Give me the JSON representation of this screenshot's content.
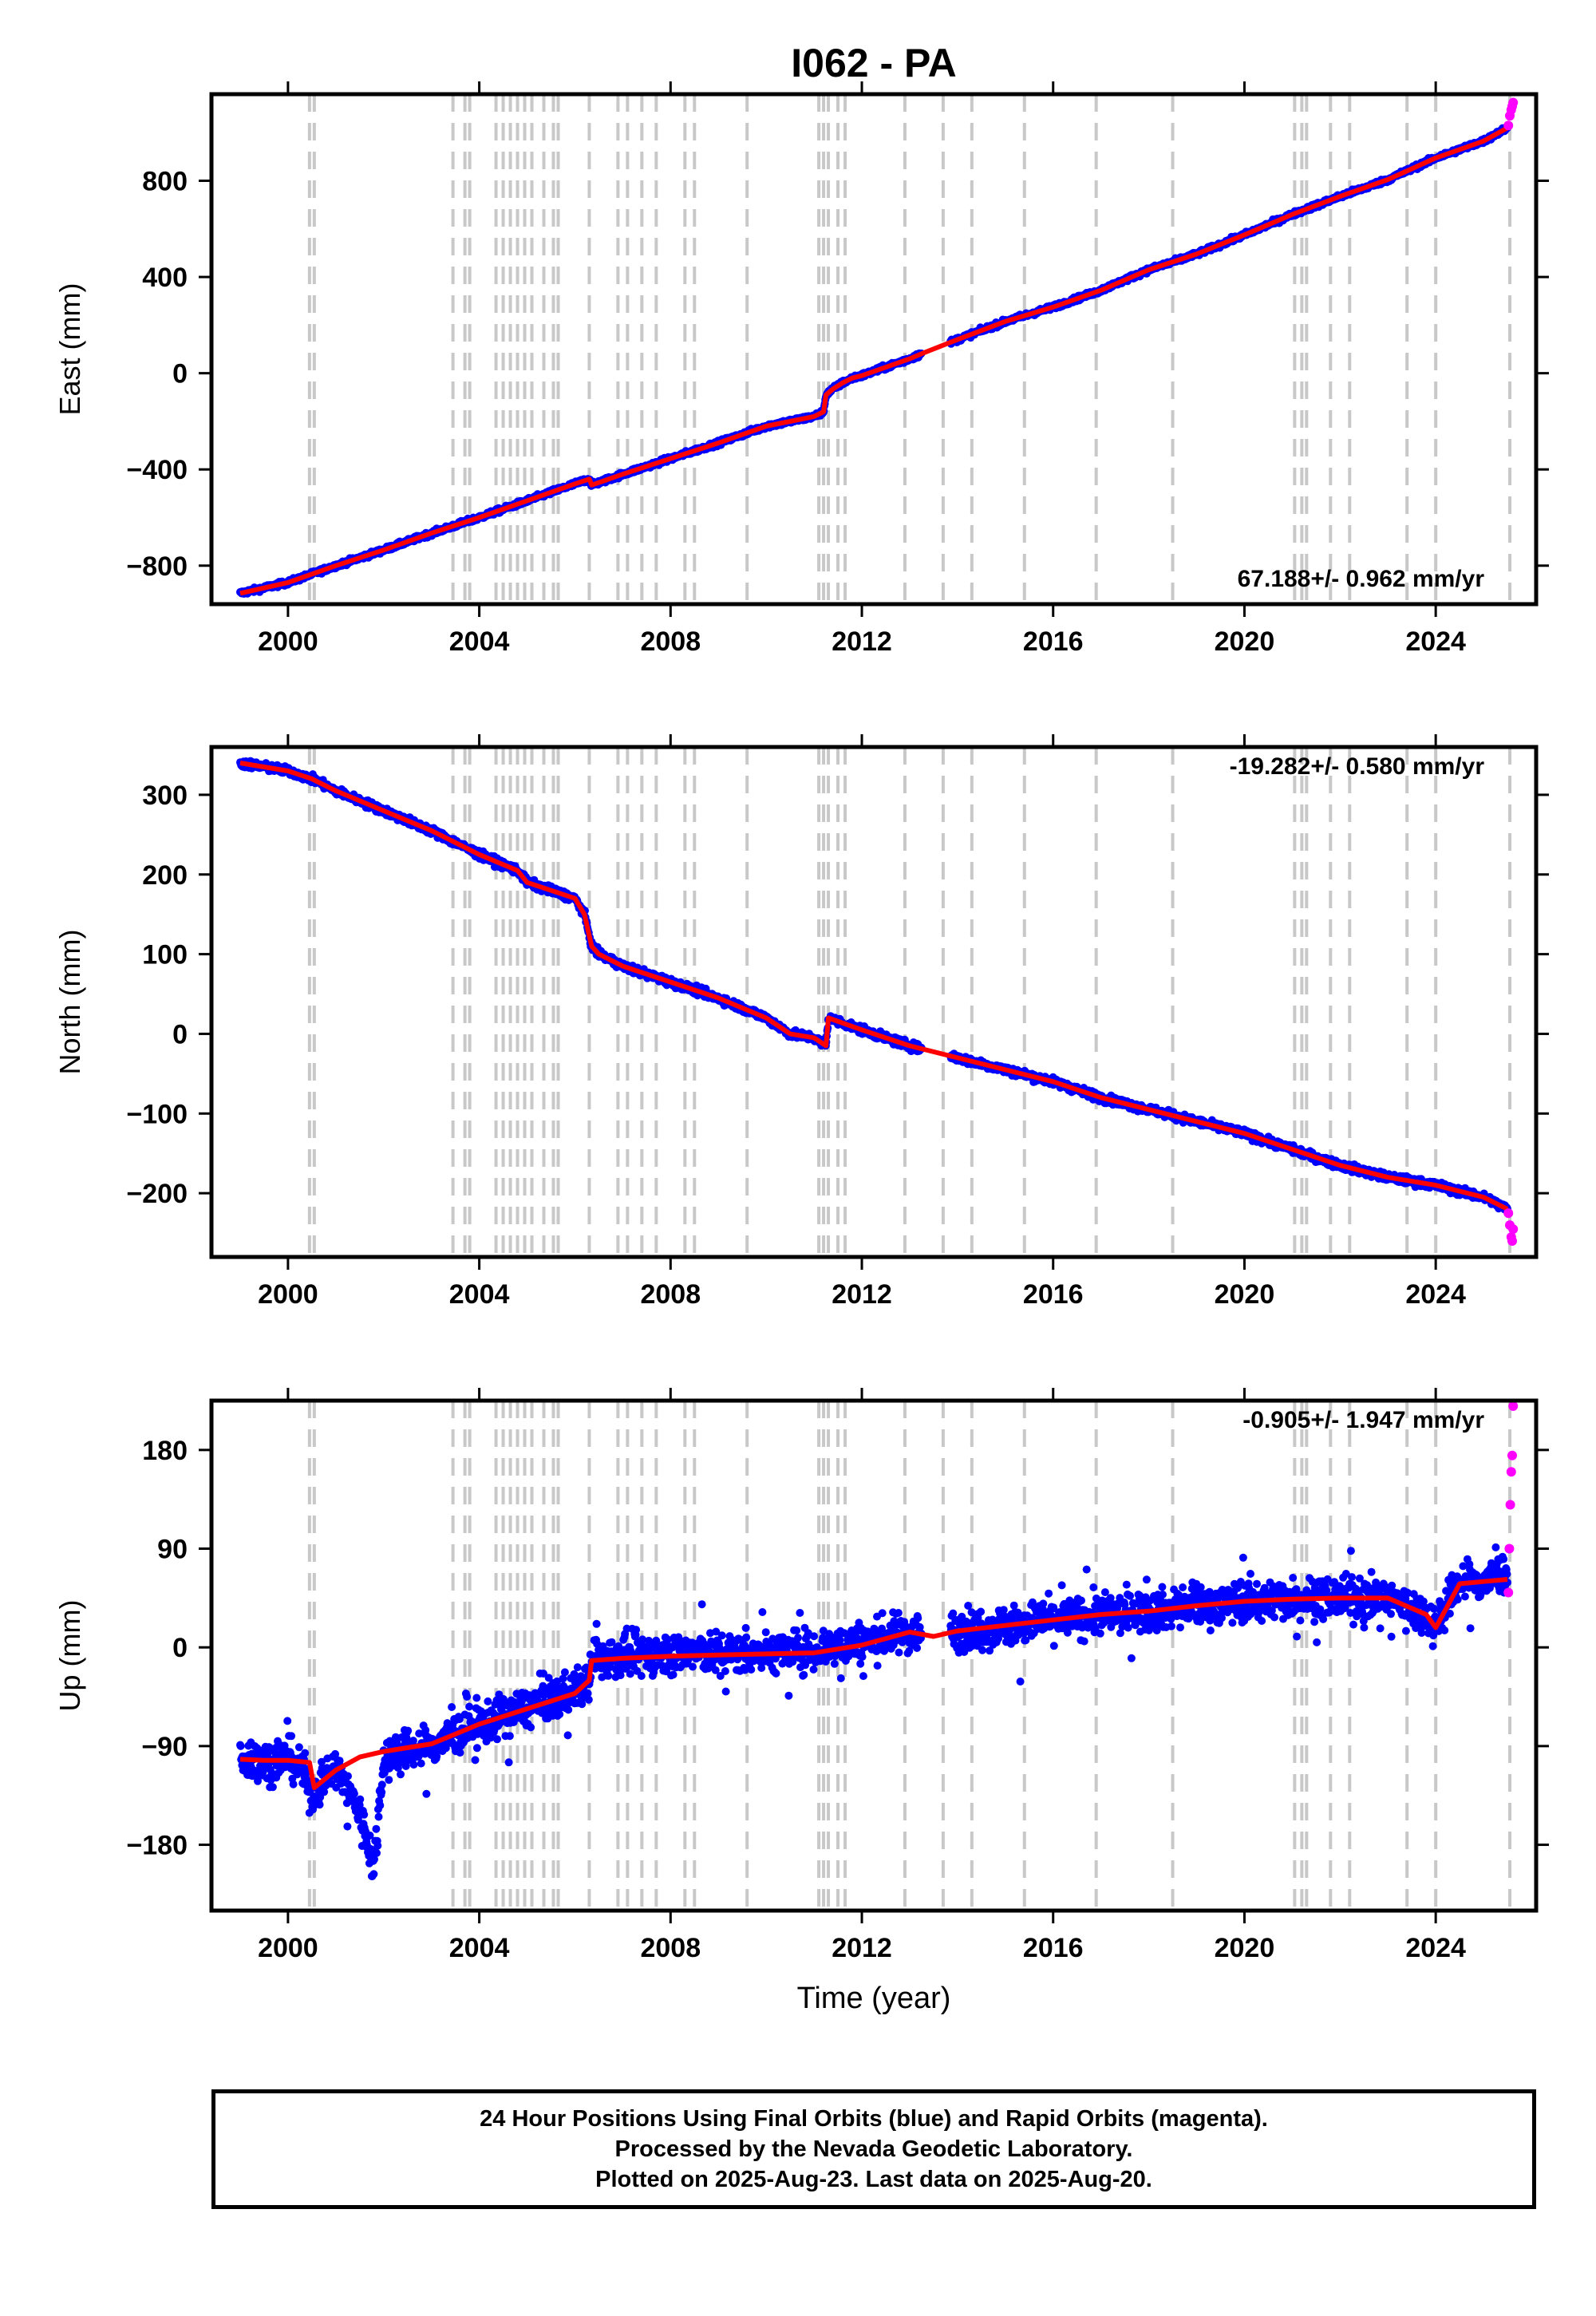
{
  "title": "I062 - PA",
  "colors": {
    "final": "#0000ff",
    "rapid": "#ff00ff",
    "model": "#ff0000",
    "steps": "#c8c8c8"
  },
  "step_epochs": [
    2000.45,
    2000.55,
    2003.45,
    2003.7,
    2003.8,
    2004.35,
    2004.5,
    2004.65,
    2004.8,
    2004.95,
    2005.1,
    2005.35,
    2005.55,
    2005.65,
    2006.3,
    2006.9,
    2007.1,
    2007.4,
    2007.7,
    2008.3,
    2008.5,
    2009.6,
    2011.1,
    2011.2,
    2011.3,
    2011.5,
    2011.65,
    2012.9,
    2013.7,
    2014.3,
    2015.4,
    2016.9,
    2018.5,
    2021.05,
    2021.2,
    2021.3,
    2021.8,
    2022.2,
    2023.4,
    2024.0,
    2025.55
  ],
  "chart_data": [
    {
      "type": "scatter",
      "component": "east",
      "ylabel": "East (mm)",
      "xlim": [
        1998.4,
        2026.1
      ],
      "ylim": [
        -960,
        1160
      ],
      "xticks": [
        2000,
        2004,
        2008,
        2012,
        2016,
        2020,
        2024
      ],
      "yticks": [
        -800,
        -400,
        0,
        400,
        800
      ],
      "rate_label": "67.188+/- 0.962 mm/yr",
      "series": [
        {
          "role": "final_orbits",
          "x": [
            1999.0,
            2000.0,
            2001.0,
            2002.0,
            2003.0,
            2004.0,
            2005.0,
            2006.0,
            2006.3,
            2006.35,
            2007.0,
            2008.0,
            2009.0,
            2010.0,
            2011.0,
            2011.2,
            2011.25,
            2011.4,
            2011.6,
            2011.8,
            2012.0,
            2013.0,
            2013.3,
            2014.0,
            2015.0,
            2016.0,
            2017.0,
            2018.0,
            2019.0,
            2020.0,
            2021.0,
            2022.0,
            2023.0,
            2024.0,
            2025.0,
            2025.5
          ],
          "y": [
            -915,
            -870,
            -800,
            -735,
            -665,
            -600,
            -530,
            -460,
            -440,
            -465,
            -420,
            -355,
            -290,
            -220,
            -180,
            -160,
            -90,
            -65,
            -40,
            -20,
            -10,
            60,
            85,
            140,
            215,
            275,
            345,
            430,
            495,
            575,
            660,
            735,
            805,
            895,
            965,
            1020
          ]
        },
        {
          "role": "rapid_orbits",
          "x": [
            2025.52,
            2025.55,
            2025.58,
            2025.6,
            2025.62
          ],
          "y": [
            1030,
            1070,
            1095,
            1110,
            1125
          ]
        },
        {
          "role": "model",
          "x": [
            1999.0,
            2000.0,
            2001.0,
            2002.0,
            2003.0,
            2004.0,
            2005.0,
            2006.0,
            2006.3,
            2006.35,
            2007.0,
            2008.0,
            2009.0,
            2010.0,
            2011.0,
            2011.2,
            2011.25,
            2011.4,
            2011.6,
            2011.8,
            2012.0,
            2013.0,
            2013.3,
            2014.0,
            2015.0,
            2016.0,
            2017.0,
            2018.0,
            2019.0,
            2020.0,
            2021.0,
            2022.0,
            2023.0,
            2024.0,
            2025.0,
            2025.5
          ],
          "y": [
            -915,
            -870,
            -800,
            -735,
            -665,
            -600,
            -530,
            -460,
            -440,
            -465,
            -420,
            -355,
            -290,
            -220,
            -180,
            -160,
            -90,
            -65,
            -40,
            -20,
            -10,
            60,
            85,
            140,
            215,
            275,
            345,
            430,
            495,
            575,
            660,
            735,
            805,
            895,
            965,
            1020
          ]
        }
      ]
    },
    {
      "type": "scatter",
      "component": "north",
      "ylabel": "North (mm)",
      "xlim": [
        1998.4,
        2026.1
      ],
      "ylim": [
        -280,
        360
      ],
      "xticks": [
        2000,
        2004,
        2008,
        2012,
        2016,
        2020,
        2024
      ],
      "yticks": [
        -200,
        -100,
        0,
        100,
        200,
        300
      ],
      "rate_label": "-19.282+/- 0.580 mm/yr",
      "series": [
        {
          "role": "final_orbits",
          "x": [
            1999.0,
            1999.5,
            2000.0,
            2000.5,
            2001.0,
            2002.0,
            2003.0,
            2004.0,
            2004.8,
            2005.0,
            2005.5,
            2006.0,
            2006.2,
            2006.35,
            2006.5,
            2007.0,
            2008.0,
            2009.0,
            2010.0,
            2010.5,
            2011.0,
            2011.25,
            2011.3,
            2012.0,
            2013.0,
            2014.0,
            2015.0,
            2016.0,
            2017.0,
            2018.0,
            2019.0,
            2020.0,
            2021.0,
            2022.0,
            2023.0,
            2024.0,
            2025.0,
            2025.5
          ],
          "y": [
            340,
            335,
            330,
            320,
            305,
            280,
            255,
            225,
            205,
            190,
            180,
            170,
            150,
            110,
            100,
            85,
            65,
            45,
            20,
            0,
            -5,
            -15,
            20,
            5,
            -15,
            -30,
            -45,
            -60,
            -80,
            -95,
            -110,
            -125,
            -145,
            -165,
            -180,
            -190,
            -205,
            -220
          ]
        },
        {
          "role": "rapid_orbits",
          "x": [
            2025.52,
            2025.55,
            2025.58,
            2025.6,
            2025.62
          ],
          "y": [
            -225,
            -240,
            -255,
            -260,
            -245
          ]
        },
        {
          "role": "model",
          "x": [
            1999.0,
            1999.5,
            2000.0,
            2000.5,
            2001.0,
            2002.0,
            2003.0,
            2004.0,
            2004.8,
            2005.0,
            2005.5,
            2006.0,
            2006.2,
            2006.35,
            2006.5,
            2007.0,
            2008.0,
            2009.0,
            2010.0,
            2010.5,
            2011.0,
            2011.25,
            2011.3,
            2012.0,
            2013.0,
            2014.0,
            2015.0,
            2016.0,
            2017.0,
            2018.0,
            2019.0,
            2020.0,
            2021.0,
            2022.0,
            2023.0,
            2024.0,
            2025.0,
            2025.5
          ],
          "y": [
            340,
            335,
            330,
            320,
            305,
            280,
            255,
            225,
            205,
            190,
            180,
            170,
            150,
            110,
            100,
            85,
            65,
            45,
            20,
            0,
            -5,
            -15,
            20,
            5,
            -15,
            -30,
            -45,
            -60,
            -80,
            -95,
            -110,
            -125,
            -145,
            -165,
            -180,
            -190,
            -205,
            -220
          ]
        }
      ]
    },
    {
      "type": "scatter",
      "component": "up",
      "ylabel": "Up (mm)",
      "xlabel": "Time (year)",
      "xlim": [
        1998.4,
        2026.1
      ],
      "ylim": [
        -240,
        225
      ],
      "xticks": [
        2000,
        2004,
        2008,
        2012,
        2016,
        2020,
        2024
      ],
      "yticks": [
        -180,
        -90,
        0,
        90,
        180
      ],
      "rate_label": "-0.905+/- 1.947 mm/yr",
      "series": [
        {
          "role": "final_orbits",
          "x": [
            1999.0,
            1999.5,
            2000.0,
            2000.3,
            2000.5,
            2000.8,
            2001.0,
            2001.5,
            2001.8,
            2002.0,
            2002.5,
            2003.0,
            2003.45,
            2004.0,
            2005.0,
            2006.0,
            2006.3,
            2006.4,
            2007.0,
            2008.0,
            2009.0,
            2010.0,
            2011.0,
            2012.0,
            2013.0,
            2013.5,
            2014.0,
            2015.0,
            2016.0,
            2017.0,
            2018.0,
            2019.0,
            2020.0,
            2021.0,
            2022.0,
            2023.0,
            2023.8,
            2024.0,
            2024.5,
            2025.0,
            2025.5
          ],
          "y": [
            -100,
            -105,
            -100,
            -112,
            -135,
            -115,
            -110,
            -150,
            -200,
            -100,
            -95,
            -90,
            -80,
            -70,
            -55,
            -40,
            -30,
            -10,
            -8,
            -5,
            -5,
            -5,
            -2,
            5,
            15,
            12,
            15,
            20,
            25,
            30,
            33,
            38,
            42,
            45,
            45,
            45,
            30,
            20,
            60,
            60,
            70
          ]
        },
        {
          "role": "rapid_orbits",
          "x": [
            2025.52,
            2025.54,
            2025.56,
            2025.58,
            2025.6,
            2025.62
          ],
          "y": [
            50,
            90,
            130,
            160,
            175,
            220
          ]
        },
        {
          "role": "model",
          "x": [
            1999.0,
            1999.5,
            2000.0,
            2000.45,
            2000.55,
            2001.0,
            2001.5,
            2002.0,
            2003.0,
            2003.45,
            2004.0,
            2005.0,
            2006.0,
            2006.3,
            2006.35,
            2007.0,
            2008.0,
            2009.0,
            2010.0,
            2011.0,
            2012.0,
            2013.0,
            2013.5,
            2014.0,
            2015.0,
            2016.0,
            2017.0,
            2018.0,
            2019.0,
            2020.0,
            2021.0,
            2022.0,
            2023.0,
            2023.8,
            2024.0,
            2024.5,
            2025.0,
            2025.5
          ],
          "y": [
            -102,
            -103,
            -103,
            -105,
            -128,
            -112,
            -100,
            -95,
            -88,
            -80,
            -70,
            -56,
            -42,
            -30,
            -12,
            -10,
            -8,
            -7,
            -6,
            -5,
            2,
            14,
            10,
            15,
            20,
            25,
            30,
            33,
            38,
            42,
            44,
            45,
            45,
            30,
            18,
            58,
            60,
            62
          ]
        }
      ]
    }
  ],
  "footer": {
    "line1": "24 Hour Positions Using Final Orbits (blue) and Rapid Orbits (magenta).",
    "line2": "Processed by the Nevada Geodetic Laboratory.",
    "line3": "Plotted on 2025-Aug-23. Last data on 2025-Aug-20."
  }
}
